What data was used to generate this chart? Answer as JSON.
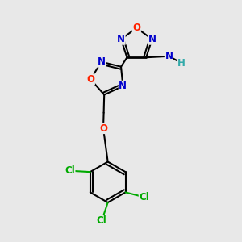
{
  "background_color": "#e8e8e8",
  "bond_color": "#000000",
  "figsize": [
    3.0,
    3.0
  ],
  "dpi": 100,
  "atom_colors": {
    "O": "#ff2200",
    "N": "#0000cc",
    "Cl": "#00aa00",
    "NH": "#0000cc",
    "H": "#33aaaa"
  }
}
